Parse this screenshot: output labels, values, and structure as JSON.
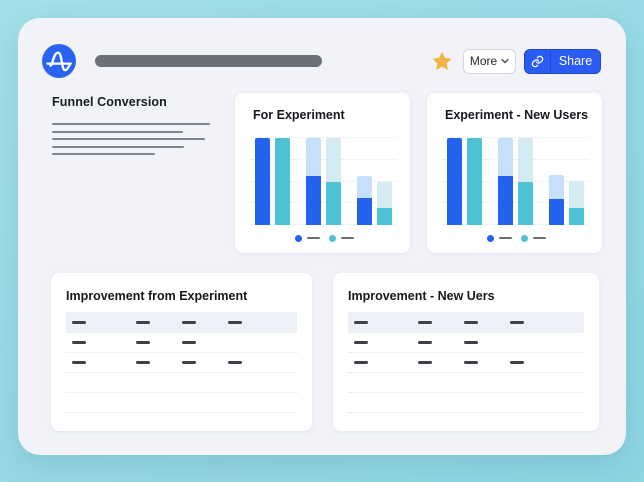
{
  "colors": {
    "page_bg": "#97dbe4",
    "window_bg": "#f1f3f8",
    "blue": "#2361ef",
    "teal": "#4cc4d3",
    "light_blue": "#c6dffb",
    "light_teal": "#d3ebf1",
    "star_gold": "#f0b545",
    "share_button_bg": "#2b5bf0",
    "logo_bg": "#2a63f1",
    "title_pill": "#6b6f76"
  },
  "header": {
    "logo_name": "amplitude-logo",
    "title_placeholder": "",
    "more_label": "More",
    "share_label": "Share"
  },
  "funnel_section": {
    "title": "Funnel Conversion",
    "placeholder_line_widths": [
      158,
      131,
      153,
      132,
      103
    ]
  },
  "chart_data": [
    {
      "type": "bar",
      "title": "For Experiment",
      "steps": 3,
      "ylim": [
        0,
        100
      ],
      "gridlines": 5,
      "grid": true,
      "legend_position": "bottom",
      "legend_labels_placeholder": true,
      "series": [
        {
          "name": "series-blue",
          "color": "blue",
          "light_color": "light_blue",
          "total_pct": [
            100,
            100,
            56
          ],
          "converted_pct": [
            100,
            56,
            31
          ]
        },
        {
          "name": "series-teal",
          "color": "teal",
          "light_color": "light_teal",
          "total_pct": [
            100,
            100,
            50
          ],
          "converted_pct": [
            100,
            50,
            20
          ]
        }
      ]
    },
    {
      "type": "bar",
      "title": "Experiment - New Users",
      "steps": 3,
      "ylim": [
        0,
        100
      ],
      "gridlines": 5,
      "grid": true,
      "legend_position": "bottom",
      "legend_labels_placeholder": true,
      "series": [
        {
          "name": "series-blue",
          "color": "blue",
          "light_color": "light_blue",
          "total_pct": [
            100,
            100,
            57
          ],
          "converted_pct": [
            100,
            56,
            30
          ]
        },
        {
          "name": "series-teal",
          "color": "teal",
          "light_color": "light_teal",
          "total_pct": [
            100,
            100,
            51
          ],
          "converted_pct": [
            100,
            50,
            20
          ]
        }
      ]
    }
  ],
  "tables": [
    {
      "title": "Improvement from Experiment",
      "columns": 4,
      "rows": [
        {
          "header": true,
          "dashes": [
            true,
            true,
            true,
            true
          ]
        },
        {
          "header": false,
          "dashes": [
            true,
            true,
            true,
            false
          ]
        },
        {
          "header": false,
          "dashes": [
            true,
            true,
            true,
            true
          ]
        },
        {
          "header": false,
          "dashes": [
            false,
            false,
            false,
            false
          ]
        },
        {
          "header": false,
          "dashes": [
            false,
            false,
            false,
            false
          ]
        }
      ]
    },
    {
      "title": "Improvement - New Uers",
      "columns": 4,
      "rows": [
        {
          "header": true,
          "dashes": [
            true,
            true,
            true,
            true
          ]
        },
        {
          "header": false,
          "dashes": [
            true,
            true,
            true,
            false
          ]
        },
        {
          "header": false,
          "dashes": [
            true,
            true,
            true,
            true
          ]
        },
        {
          "header": false,
          "dashes": [
            false,
            false,
            false,
            false
          ]
        },
        {
          "header": false,
          "dashes": [
            false,
            false,
            false,
            false
          ]
        }
      ]
    }
  ]
}
